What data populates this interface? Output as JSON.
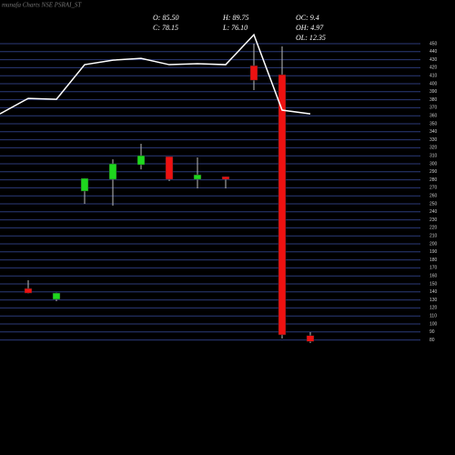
{
  "chart_data": {
    "type": "candlestick",
    "title": "munafa Charts NSE PSRAI_ST",
    "info": [
      "O: 85.50",
      "H: 89.75",
      "OC: 9.4",
      "C: 78.15",
      "L: 76.10",
      "OH: 4.97",
      "OL: 12.35"
    ],
    "open": [
      null,
      144.3,
      130.7,
      265.9,
      280.6,
      298.8,
      309,
      280.6,
      284,
      422.6,
      411.3,
      85.5
    ],
    "high": [
      null,
      154.5,
      139,
      282,
      305.6,
      325,
      309,
      307.9,
      284,
      450,
      446.6,
      89.75
    ],
    "low": [
      null,
      138,
      128.4,
      250,
      247.7,
      293,
      278.4,
      269.3,
      269.3,
      392,
      81.8,
      76.1
    ],
    "close": [
      null,
      138.6,
      138.6,
      281.8,
      300,
      310.2,
      280.6,
      286.3,
      280.6,
      404.4,
      86.4,
      78.15
    ],
    "up_color": "#1ed81e",
    "down_color": "#ee1111",
    "line": {
      "color": "#ffffff",
      "values": [
        362.4,
        381.7,
        380.6,
        423.8,
        429.4,
        431.7,
        423.8,
        425,
        423.8,
        461.2,
        367,
        362.4
      ]
    },
    "ylim": [
      75,
      450
    ],
    "yticks": [
      80,
      90,
      100,
      110,
      120,
      130,
      140,
      150,
      160,
      170,
      180,
      190,
      200,
      210,
      220,
      230,
      240,
      250,
      260,
      270,
      280,
      290,
      300,
      310,
      320,
      330,
      340,
      350,
      360,
      370,
      380,
      390,
      400,
      410,
      420,
      430,
      440,
      450
    ],
    "grid": true,
    "grid_color": "#2b3a78"
  }
}
